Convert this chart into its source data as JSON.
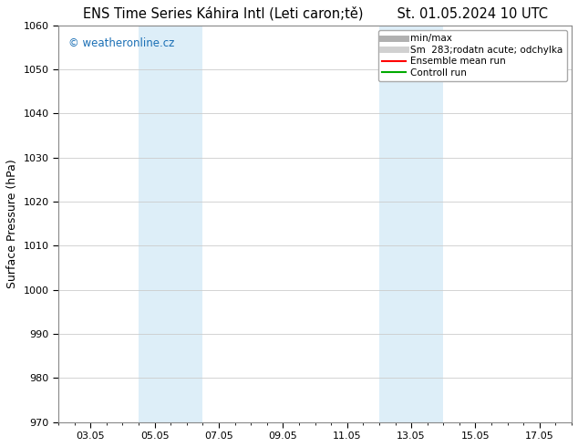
{
  "title_left": "ENS Time Series Káhira Intl (Leti caron;tě)",
  "title_right": "St. 01.05.2024 10 UTC",
  "ylabel": "Surface Pressure (hPa)",
  "ylim": [
    970,
    1060
  ],
  "yticks": [
    970,
    980,
    990,
    1000,
    1010,
    1020,
    1030,
    1040,
    1050,
    1060
  ],
  "xtick_labels": [
    "03.05",
    "05.05",
    "07.05",
    "09.05",
    "11.05",
    "13.05",
    "15.05",
    "17.05"
  ],
  "xtick_positions": [
    2,
    4,
    6,
    8,
    10,
    12,
    14,
    16
  ],
  "xlim": [
    1,
    17
  ],
  "shaded_regions": [
    {
      "x_start": 3.5,
      "x_end": 5.5,
      "color": "#ddeef8"
    },
    {
      "x_start": 11.0,
      "x_end": 13.0,
      "color": "#ddeef8"
    }
  ],
  "watermark_text": "© weatheronline.cz",
  "watermark_color": "#1a6fb5",
  "legend_items": [
    {
      "label": "min/max",
      "color": "#b0b0b0",
      "lw": 5
    },
    {
      "label": "Sm  283;rodatn acute; odchylka",
      "color": "#d0d0d0",
      "lw": 5
    },
    {
      "label": "Ensemble mean run",
      "color": "#ff0000",
      "lw": 1.5
    },
    {
      "label": "Controll run",
      "color": "#00aa00",
      "lw": 1.5
    }
  ],
  "bg_color": "#ffffff",
  "grid_color": "#cccccc",
  "title_fontsize": 10.5,
  "axis_fontsize": 9,
  "tick_fontsize": 8,
  "legend_fontsize": 7.5
}
